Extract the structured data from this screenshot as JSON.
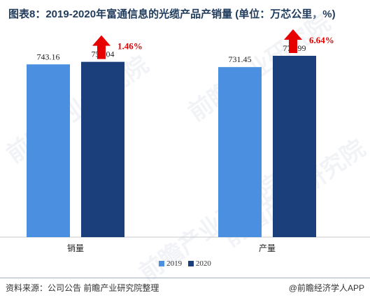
{
  "title": "图表8：2019-2020年富通信息的光缆产品产销量 (单位：万芯公里，%)",
  "chart_data": {
    "type": "bar",
    "categories": [
      "销量",
      "产量"
    ],
    "series": [
      {
        "name": "2019",
        "values": [
          743.16,
          731.45
        ],
        "color": "#4a8fe0"
      },
      {
        "name": "2020",
        "values": [
          754.04,
          779.99
        ],
        "color": "#1b3f7a"
      }
    ],
    "data_labels": [
      [
        "743.16",
        "754.04"
      ],
      [
        "731.45",
        "779.99"
      ]
    ],
    "growth_labels": [
      "1.46%",
      "6.64%"
    ],
    "growth_color": "#e60000",
    "ylim": [
      0,
      900
    ],
    "legend_position": "bottom"
  },
  "footer": {
    "source": "资料来源：公司公告 前瞻产业研究院整理",
    "brand": "@前瞻经济学人APP"
  },
  "watermark": "前瞻产业研究院"
}
